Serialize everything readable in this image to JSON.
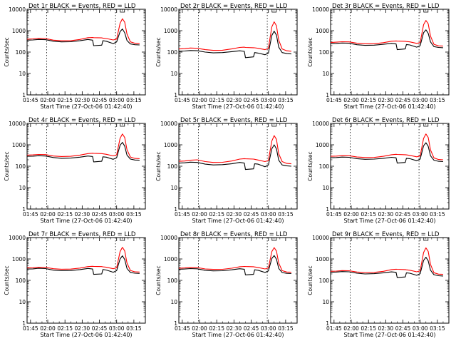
{
  "figure": {
    "x_axis_title": "Start Time (27-Oct-06 01:42:40)",
    "y_axis_title": "Counts/sec",
    "x_ticks": [
      "01:45",
      "02:00",
      "02:15",
      "02:30",
      "02:45",
      "03:00",
      "03:15"
    ],
    "y_ticks": [
      "1",
      "10",
      "100",
      "1000",
      "10000"
    ]
  },
  "colors": {
    "events": "#000000",
    "lld": "#ff0000",
    "axis": "#000000",
    "background": "#ffffff"
  },
  "chart_data": [
    {
      "type": "line",
      "title": "Det 1r BLACK = Events, RED = LLD",
      "xlabel": "Start Time (27-Oct-06 01:42:40)",
      "ylabel": "Counts/sec",
      "x_unit": "hh:mm",
      "xlim": [
        "01:42",
        "03:25"
      ],
      "ylim": [
        1,
        10000
      ],
      "y_scale": "log",
      "vlines": [
        "01:59",
        "02:59"
      ],
      "x": [
        "01:42",
        "01:47",
        "01:52",
        "01:58",
        "02:05",
        "02:12",
        "02:20",
        "02:28",
        "02:35",
        "02:39",
        "02:40",
        "02:47",
        "02:48",
        "02:51",
        "02:57",
        "03:00",
        "03:03",
        "03:05",
        "03:07",
        "03:09",
        "03:12",
        "03:16",
        "03:20"
      ],
      "series": [
        {
          "name": "Events",
          "color": "#000000",
          "values": [
            360,
            370,
            390,
            380,
            320,
            300,
            305,
            340,
            390,
            360,
            200,
            210,
            340,
            320,
            250,
            300,
            900,
            1200,
            800,
            350,
            240,
            220,
            215
          ]
        },
        {
          "name": "LLD",
          "color": "#ff0000",
          "values": [
            400,
            415,
            440,
            430,
            360,
            340,
            340,
            390,
            470,
            480,
            470,
            460,
            450,
            430,
            370,
            400,
            2200,
            3600,
            2500,
            700,
            300,
            260,
            250
          ]
        }
      ]
    },
    {
      "type": "line",
      "title": "Det 2r BLACK = Events, RED = LLD",
      "xlabel": "Start Time (27-Oct-06 01:42:40)",
      "ylabel": "Counts/sec",
      "x_unit": "hh:mm",
      "xlim": [
        "01:42",
        "03:25"
      ],
      "ylim": [
        1,
        10000
      ],
      "y_scale": "log",
      "vlines": [
        "01:59",
        "02:59"
      ],
      "x": [
        "01:42",
        "01:47",
        "01:52",
        "01:58",
        "02:05",
        "02:12",
        "02:20",
        "02:28",
        "02:35",
        "02:39",
        "02:40",
        "02:47",
        "02:48",
        "02:51",
        "02:57",
        "03:00",
        "03:03",
        "03:05",
        "03:07",
        "03:09",
        "03:12",
        "03:16",
        "03:20"
      ],
      "series": [
        {
          "name": "Events",
          "color": "#000000",
          "values": [
            110,
            112,
            118,
            116,
            100,
            92,
            95,
            105,
            115,
            108,
            55,
            60,
            95,
            90,
            75,
            90,
            600,
            950,
            620,
            170,
            95,
            85,
            82
          ]
        },
        {
          "name": "LLD",
          "color": "#ff0000",
          "values": [
            140,
            145,
            155,
            150,
            130,
            120,
            122,
            140,
            165,
            170,
            165,
            160,
            158,
            150,
            130,
            150,
            1500,
            2600,
            1700,
            360,
            140,
            115,
            110
          ]
        }
      ]
    },
    {
      "type": "line",
      "title": "Det 3r BLACK = Events, RED = LLD",
      "xlabel": "Start Time (27-Oct-06 01:42:40)",
      "ylabel": "Counts/sec",
      "x_unit": "hh:mm",
      "xlim": [
        "01:42",
        "03:25"
      ],
      "ylim": [
        1,
        10000
      ],
      "y_scale": "log",
      "vlines": [
        "01:59",
        "02:59"
      ],
      "x": [
        "01:42",
        "01:47",
        "01:52",
        "01:58",
        "02:05",
        "02:12",
        "02:20",
        "02:28",
        "02:35",
        "02:39",
        "02:40",
        "02:47",
        "02:48",
        "02:51",
        "02:57",
        "03:00",
        "03:03",
        "03:05",
        "03:07",
        "03:09",
        "03:12",
        "03:16",
        "03:20"
      ],
      "series": [
        {
          "name": "Events",
          "color": "#000000",
          "values": [
            250,
            255,
            265,
            260,
            220,
            205,
            210,
            230,
            255,
            240,
            130,
            140,
            225,
            215,
            170,
            200,
            800,
            1100,
            750,
            300,
            180,
            165,
            160
          ]
        },
        {
          "name": "LLD",
          "color": "#ff0000",
          "values": [
            280,
            290,
            305,
            300,
            260,
            245,
            245,
            275,
            320,
            330,
            325,
            318,
            312,
            300,
            255,
            280,
            1900,
            3000,
            2100,
            560,
            230,
            195,
            190
          ]
        }
      ]
    },
    {
      "type": "line",
      "title": "Det 4r BLACK = Events, RED = LLD",
      "xlabel": "Start Time (27-Oct-06 01:42:40)",
      "ylabel": "Counts/sec",
      "x_unit": "hh:mm",
      "xlim": [
        "01:42",
        "03:25"
      ],
      "ylim": [
        1,
        10000
      ],
      "y_scale": "log",
      "vlines": [
        "01:59",
        "02:59"
      ],
      "x": [
        "01:42",
        "01:47",
        "01:52",
        "01:58",
        "02:05",
        "02:12",
        "02:20",
        "02:28",
        "02:35",
        "02:39",
        "02:40",
        "02:47",
        "02:48",
        "02:51",
        "02:57",
        "03:00",
        "03:03",
        "03:05",
        "03:07",
        "03:09",
        "03:12",
        "03:16",
        "03:20"
      ],
      "series": [
        {
          "name": "Events",
          "color": "#000000",
          "values": [
            290,
            295,
            310,
            300,
            255,
            235,
            240,
            265,
            300,
            285,
            160,
            170,
            275,
            265,
            210,
            250,
            950,
            1300,
            880,
            330,
            215,
            195,
            190
          ]
        },
        {
          "name": "LLD",
          "color": "#ff0000",
          "values": [
            330,
            340,
            355,
            350,
            300,
            285,
            290,
            330,
            390,
            405,
            400,
            390,
            380,
            360,
            305,
            340,
            2000,
            3200,
            2200,
            600,
            270,
            230,
            225
          ]
        }
      ]
    },
    {
      "type": "line",
      "title": "Det 5r BLACK = Events, RED = LLD",
      "xlabel": "Start Time (27-Oct-06 01:42:40)",
      "ylabel": "Counts/sec",
      "x_unit": "hh:mm",
      "xlim": [
        "01:42",
        "03:25"
      ],
      "ylim": [
        1,
        10000
      ],
      "y_scale": "log",
      "vlines": [
        "01:59",
        "02:59"
      ],
      "x": [
        "01:42",
        "01:47",
        "01:52",
        "01:58",
        "02:05",
        "02:12",
        "02:20",
        "02:28",
        "02:35",
        "02:39",
        "02:40",
        "02:47",
        "02:48",
        "02:51",
        "02:57",
        "03:00",
        "03:03",
        "03:05",
        "03:07",
        "03:09",
        "03:12",
        "03:16",
        "03:20"
      ],
      "series": [
        {
          "name": "Events",
          "color": "#000000",
          "values": [
            140,
            145,
            155,
            150,
            125,
            115,
            118,
            130,
            150,
            140,
            70,
            75,
            130,
            125,
            95,
            115,
            650,
            1000,
            650,
            190,
            115,
            105,
            100
          ]
        },
        {
          "name": "LLD",
          "color": "#ff0000",
          "values": [
            170,
            175,
            190,
            200,
            165,
            150,
            152,
            175,
            215,
            225,
            222,
            215,
            210,
            195,
            165,
            185,
            1500,
            2700,
            1800,
            380,
            165,
            135,
            130
          ]
        }
      ]
    },
    {
      "type": "line",
      "title": "Det 6r BLACK = Events, RED = LLD",
      "xlabel": "Start Time (27-Oct-06 01:42:40)",
      "ylabel": "Counts/sec",
      "x_unit": "hh:mm",
      "xlim": [
        "01:42",
        "03:25"
      ],
      "ylim": [
        1,
        10000
      ],
      "y_scale": "log",
      "vlines": [
        "01:59",
        "02:59"
      ],
      "x": [
        "01:42",
        "01:47",
        "01:52",
        "01:58",
        "02:05",
        "02:12",
        "02:20",
        "02:28",
        "02:35",
        "02:39",
        "02:40",
        "02:47",
        "02:48",
        "02:51",
        "02:57",
        "03:00",
        "03:03",
        "03:05",
        "03:07",
        "03:09",
        "03:12",
        "03:16",
        "03:20"
      ],
      "series": [
        {
          "name": "Events",
          "color": "#000000",
          "values": [
            250,
            255,
            268,
            262,
            225,
            210,
            215,
            235,
            262,
            248,
            140,
            150,
            235,
            225,
            180,
            215,
            900,
            1250,
            850,
            310,
            190,
            170,
            165
          ]
        },
        {
          "name": "LLD",
          "color": "#ff0000",
          "values": [
            290,
            298,
            312,
            308,
            270,
            255,
            258,
            290,
            345,
            360,
            355,
            345,
            338,
            322,
            275,
            300,
            2000,
            3200,
            2200,
            580,
            245,
            205,
            200
          ]
        }
      ]
    },
    {
      "type": "line",
      "title": "Det 7r BLACK = Events, RED = LLD",
      "xlabel": "Start Time (27-Oct-06 01:42:40)",
      "ylabel": "Counts/sec",
      "x_unit": "hh:mm",
      "xlim": [
        "01:42",
        "03:25"
      ],
      "ylim": [
        1,
        10000
      ],
      "y_scale": "log",
      "vlines": [
        "01:59",
        "02:59"
      ],
      "x": [
        "01:42",
        "01:47",
        "01:52",
        "01:58",
        "02:05",
        "02:12",
        "02:20",
        "02:28",
        "02:35",
        "02:39",
        "02:40",
        "02:47",
        "02:48",
        "02:51",
        "02:57",
        "03:00",
        "03:03",
        "03:05",
        "03:07",
        "03:09",
        "03:12",
        "03:16",
        "03:20"
      ],
      "series": [
        {
          "name": "Events",
          "color": "#000000",
          "values": [
            340,
            345,
            365,
            355,
            300,
            282,
            288,
            318,
            360,
            340,
            190,
            200,
            320,
            305,
            240,
            285,
            1000,
            1400,
            950,
            360,
            235,
            215,
            210
          ]
        },
        {
          "name": "LLD",
          "color": "#ff0000",
          "values": [
            380,
            390,
            412,
            405,
            350,
            332,
            335,
            375,
            440,
            455,
            450,
            440,
            430,
            410,
            350,
            385,
            2200,
            3500,
            2400,
            650,
            290,
            250,
            245
          ]
        }
      ]
    },
    {
      "type": "line",
      "title": "Det 8r BLACK = Events, RED = LLD",
      "xlabel": "Start Time (27-Oct-06 01:42:40)",
      "ylabel": "Counts/sec",
      "x_unit": "hh:mm",
      "xlim": [
        "01:42",
        "03:25"
      ],
      "ylim": [
        1,
        10000
      ],
      "y_scale": "log",
      "vlines": [
        "01:59",
        "02:59"
      ],
      "x": [
        "01:42",
        "01:47",
        "01:52",
        "01:58",
        "02:05",
        "02:12",
        "02:20",
        "02:28",
        "02:35",
        "02:39",
        "02:40",
        "02:47",
        "02:48",
        "02:51",
        "02:57",
        "03:00",
        "03:03",
        "03:05",
        "03:07",
        "03:09",
        "03:12",
        "03:16",
        "03:20"
      ],
      "series": [
        {
          "name": "Events",
          "color": "#000000",
          "values": [
            330,
            338,
            356,
            348,
            295,
            278,
            282,
            312,
            350,
            332,
            180,
            190,
            312,
            298,
            235,
            278,
            1050,
            1450,
            980,
            360,
            232,
            212,
            208
          ]
        },
        {
          "name": "LLD",
          "color": "#ff0000",
          "values": [
            370,
            380,
            402,
            395,
            342,
            325,
            328,
            368,
            432,
            448,
            442,
            432,
            422,
            402,
            342,
            378,
            2200,
            3400,
            2350,
            640,
            285,
            245,
            240
          ]
        }
      ]
    },
    {
      "type": "line",
      "title": "Det 9r BLACK = Events, RED = LLD",
      "xlabel": "Start Time (27-Oct-06 01:42:40)",
      "ylabel": "Counts/sec",
      "x_unit": "hh:mm",
      "xlim": [
        "01:42",
        "03:25"
      ],
      "ylim": [
        1,
        10000
      ],
      "y_scale": "log",
      "vlines": [
        "01:59",
        "02:59"
      ],
      "x": [
        "01:42",
        "01:47",
        "01:52",
        "01:58",
        "02:05",
        "02:12",
        "02:20",
        "02:28",
        "02:35",
        "02:39",
        "02:40",
        "02:47",
        "02:48",
        "02:51",
        "02:57",
        "03:00",
        "03:03",
        "03:05",
        "03:07",
        "03:09",
        "03:12",
        "03:16",
        "03:20"
      ],
      "series": [
        {
          "name": "Events",
          "color": "#000000",
          "values": [
            240,
            245,
            258,
            252,
            215,
            200,
            205,
            225,
            250,
            238,
            135,
            145,
            225,
            215,
            172,
            205,
            850,
            1200,
            820,
            300,
            185,
            165,
            160
          ]
        },
        {
          "name": "LLD",
          "color": "#ff0000",
          "values": [
            265,
            272,
            286,
            282,
            245,
            232,
            236,
            266,
            318,
            332,
            328,
            318,
            312,
            298,
            252,
            278,
            2000,
            3300,
            2250,
            560,
            228,
            195,
            190
          ]
        }
      ]
    }
  ]
}
